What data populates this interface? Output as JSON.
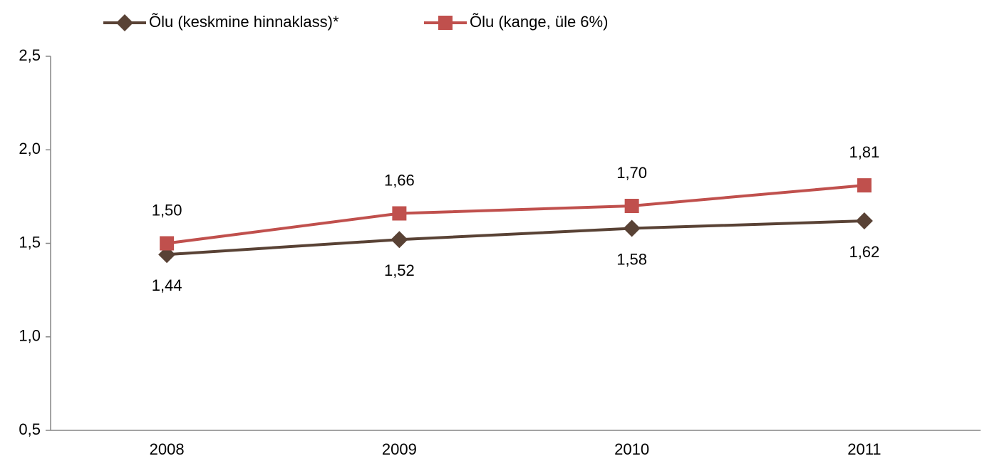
{
  "chart_data": {
    "type": "line",
    "categories": [
      "2008",
      "2009",
      "2010",
      "2011"
    ],
    "series": [
      {
        "name": "Õlu (keskmine hinnaklass)*",
        "color": "#594235",
        "marker": "diamond",
        "label_position": "below",
        "values": [
          1.44,
          1.52,
          1.58,
          1.62
        ],
        "value_labels": [
          "1,44",
          "1,52",
          "1,58",
          "1,62"
        ]
      },
      {
        "name": "Õlu (kange, üle 6%)",
        "color": "#c0504d",
        "marker": "square",
        "label_position": "above",
        "values": [
          1.5,
          1.66,
          1.7,
          1.81
        ],
        "value_labels": [
          "1,50",
          "1,66",
          "1,70",
          "1,81"
        ]
      }
    ],
    "ylim": [
      0.5,
      2.5
    ],
    "yticks": [
      {
        "value": 0.5,
        "label": "0,5"
      },
      {
        "value": 1.0,
        "label": "1,0"
      },
      {
        "value": 1.5,
        "label": "1,5"
      },
      {
        "value": 2.0,
        "label": "2,0"
      },
      {
        "value": 2.5,
        "label": "2,5"
      }
    ],
    "grid": false,
    "legend": "top"
  }
}
